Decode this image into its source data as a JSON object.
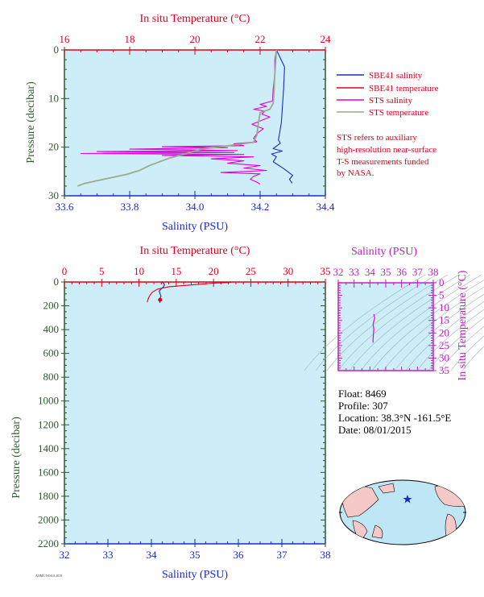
{
  "top_panel": {
    "top_axis_title": "In situ Temperature (°C)",
    "bottom_axis_title": "Salinity (PSU)",
    "y_axis_title": "Pressure (decibar)",
    "legend": [
      "SBE41 salinity",
      "SBE41 temperature",
      "STS salinity",
      "STS temperature"
    ],
    "note": [
      "STS refers to auxiliary",
      "high-resolution near-surface",
      "T-S measurements funded",
      "by NASA."
    ]
  },
  "bottom_panel": {
    "top_axis_title": "In situ Temperature (°C)",
    "bottom_axis_title": "Salinity (PSU)",
    "y_axis_title": "Pressure (decibar)"
  },
  "ts_panel": {
    "top_axis_title": "Salinity (PSU)",
    "right_axis_title": "In situ Temperature (°C)"
  },
  "info": {
    "float": "Float: 8469",
    "profile": "Profile: 307",
    "location": "Location: 38.3°N -161.5°E",
    "date": "Date: 08/01/2015"
  },
  "footer_code": "AOML/NOAA 2019",
  "colors": {
    "plot_bg": "#cdeef8",
    "temperature": "#e0001b",
    "salinity": "#1a2bbd",
    "sts_salinity": "#e000d8",
    "sts_temperature": "#9aaa8a",
    "pressure_axis": "#2b5a2b",
    "ts_axis": "#c020c0",
    "land": "#f6c9c9",
    "ocean": "#bfe6f5"
  },
  "chart_data": [
    {
      "type": "line",
      "panel": "top",
      "x_salinity_ticks": [
        "33.6",
        "33.8",
        "34.0",
        "34.2",
        "34.4"
      ],
      "x_salinity_lim": [
        33.6,
        34.4
      ],
      "x_temperature_ticks": [
        "16",
        "18",
        "20",
        "22",
        "24"
      ],
      "x_temperature_lim": [
        16,
        24
      ],
      "y_ticks": [
        "0",
        "10",
        "20",
        "30"
      ],
      "y_lim": [
        0,
        30
      ],
      "grid": false,
      "series": [
        {
          "name": "SBE41 salinity",
          "axis": "salinity",
          "points": [
            [
              34.25,
              0
            ],
            [
              34.275,
              3.5
            ],
            [
              34.272,
              8
            ],
            [
              34.268,
              12
            ],
            [
              34.265,
              15
            ],
            [
              34.26,
              17
            ],
            [
              34.256,
              18.5
            ],
            [
              34.262,
              19.2
            ],
            [
              34.24,
              20.3
            ],
            [
              34.268,
              20.8
            ],
            [
              34.235,
              21.4
            ],
            [
              34.25,
              22
            ],
            [
              34.24,
              23
            ],
            [
              34.272,
              24.4
            ],
            [
              34.3,
              25.8
            ],
            [
              34.29,
              26.6
            ],
            [
              34.298,
              27.4
            ]
          ]
        },
        {
          "name": "SBE41 temperature",
          "axis": "temperature",
          "points": [
            [
              22.5,
              0
            ],
            [
              22.5,
              0.3
            ]
          ]
        },
        {
          "name": "STS salinity",
          "axis": "salinity",
          "points": [
            [
              34.25,
              0
            ],
            [
              34.245,
              2
            ],
            [
              34.245,
              5
            ],
            [
              34.24,
              8
            ],
            [
              34.238,
              10.5
            ],
            [
              34.2,
              11.2
            ],
            [
              34.22,
              11.6
            ],
            [
              34.18,
              12.2
            ],
            [
              34.215,
              12.6
            ],
            [
              34.205,
              13.2
            ],
            [
              34.23,
              13.8
            ],
            [
              34.2,
              14.6
            ],
            [
              34.175,
              15.3
            ],
            [
              34.21,
              16.2
            ],
            [
              34.19,
              17.2
            ],
            [
              34.18,
              18.2
            ],
            [
              34.19,
              18.9
            ],
            [
              34.12,
              19.3
            ],
            [
              34.15,
              19.7
            ],
            [
              33.9,
              19.9
            ],
            [
              34.1,
              20.1
            ],
            [
              33.8,
              20.4
            ],
            [
              34.13,
              20.7
            ],
            [
              33.7,
              20.9
            ],
            [
              34.12,
              21.1
            ],
            [
              33.65,
              21.3
            ],
            [
              34.15,
              21.5
            ],
            [
              33.9,
              21.7
            ],
            [
              34.18,
              22.0
            ],
            [
              34.05,
              22.4
            ],
            [
              34.15,
              22.8
            ],
            [
              34.1,
              23.3
            ],
            [
              34.2,
              23.8
            ],
            [
              34.15,
              24.3
            ],
            [
              34.22,
              24.8
            ],
            [
              34.08,
              25.2
            ],
            [
              34.2,
              25.5
            ],
            [
              34.18,
              26
            ],
            [
              34.17,
              26.6
            ],
            [
              34.19,
              27.2
            ],
            [
              34.2,
              27.6
            ]
          ]
        },
        {
          "name": "STS temperature",
          "axis": "temperature",
          "points": [
            [
              22.5,
              0
            ],
            [
              22.45,
              5
            ],
            [
              22.42,
              9
            ],
            [
              22.4,
              11
            ],
            [
              22.3,
              12.2
            ],
            [
              22.0,
              12.9
            ],
            [
              21.95,
              15
            ],
            [
              21.9,
              17.5
            ],
            [
              21.8,
              19
            ],
            [
              20.8,
              19.9
            ],
            [
              20.2,
              20.4
            ],
            [
              19.8,
              21.2
            ],
            [
              19.2,
              22.3
            ],
            [
              18.6,
              23.8
            ],
            [
              18.3,
              24.8
            ],
            [
              17.9,
              25.6
            ],
            [
              17.2,
              26.6
            ],
            [
              16.6,
              27.5
            ],
            [
              16.4,
              28.0
            ]
          ]
        }
      ]
    },
    {
      "type": "line",
      "panel": "bottom",
      "x_salinity_ticks": [
        "32",
        "33",
        "34",
        "35",
        "36",
        "37",
        "38"
      ],
      "x_salinity_lim": [
        32,
        38
      ],
      "x_temperature_ticks": [
        "0",
        "5",
        "10",
        "15",
        "20",
        "25",
        "30",
        "35"
      ],
      "x_temperature_lim": [
        0,
        35
      ],
      "y_ticks": [
        "0",
        "200",
        "400",
        "600",
        "800",
        "1000",
        "1200",
        "1400",
        "1600",
        "1800",
        "2000",
        "2200"
      ],
      "y_lim": [
        0,
        2200
      ],
      "grid": false,
      "series": [
        {
          "name": "salinity",
          "axis": "salinity",
          "points": [
            [
              34.25,
              0
            ],
            [
              34.3,
              20
            ],
            [
              34.28,
              40
            ],
            [
              34.18,
              75
            ],
            [
              34.2,
              100
            ],
            [
              34.22,
              120
            ],
            [
              34.18,
              150
            ],
            [
              34.2,
              175
            ]
          ]
        },
        {
          "name": "temperature",
          "axis": "temperature",
          "points": [
            [
              22.5,
              0
            ],
            [
              22.0,
              5
            ],
            [
              20,
              10
            ],
            [
              17,
              25
            ],
            [
              14,
              40
            ],
            [
              12.5,
              60
            ],
            [
              11.8,
              85
            ],
            [
              11.5,
              110
            ],
            [
              11.3,
              130
            ],
            [
              11.2,
              150
            ],
            [
              11.1,
              170
            ]
          ]
        }
      ],
      "markers": [
        [
          34.2,
          150
        ]
      ]
    },
    {
      "type": "line",
      "panel": "ts_inset",
      "x_ticks": [
        "32",
        "33",
        "34",
        "35",
        "36",
        "37",
        "38"
      ],
      "x_lim": [
        32,
        38
      ],
      "y_ticks": [
        "0",
        "5",
        "10",
        "15",
        "20",
        "25",
        "30",
        "35"
      ],
      "y_lim": [
        0,
        35
      ],
      "series": [
        {
          "name": "T-S",
          "points": [
            [
              34.2,
              11.1
            ],
            [
              34.2,
              12.5
            ],
            [
              34.22,
              14.5
            ],
            [
              34.25,
              16.5
            ],
            [
              34.2,
              18.5
            ],
            [
              34.3,
              21
            ],
            [
              34.25,
              22.5
            ]
          ]
        }
      ]
    }
  ]
}
